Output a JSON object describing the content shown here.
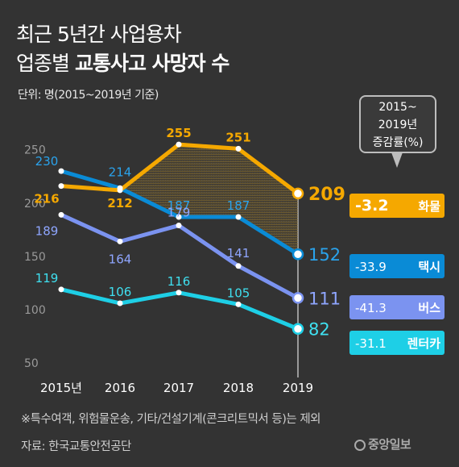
{
  "header": {
    "title_line1": "최근 5년간 사업용차",
    "title_line2_plain": "업종별 ",
    "title_line2_bold": "교통사고 사망자 수",
    "unit": "단위: 명(2015~2019년 기준)"
  },
  "callout": {
    "line1": "2015~",
    "line2": "2019년",
    "line3": "증감률(%)"
  },
  "chart_data": {
    "type": "line",
    "x": [
      "2015년",
      "2016",
      "2017",
      "2018",
      "2019"
    ],
    "ylim": [
      50,
      250
    ],
    "yticks": [
      50,
      100,
      150,
      200,
      250
    ],
    "grid": false,
    "series": [
      {
        "name": "화물",
        "values": [
          216,
          212,
          255,
          251,
          209
        ],
        "change": "-3.2",
        "color": "#f5a800"
      },
      {
        "name": "택시",
        "values": [
          230,
          214,
          187,
          187,
          152
        ],
        "change": "-33.9",
        "color": "#0a8bd6"
      },
      {
        "name": "버스",
        "values": [
          189,
          164,
          179,
          141,
          111
        ],
        "change": "-41.3",
        "color": "#7b93f0"
      },
      {
        "name": "렌터카",
        "values": [
          119,
          106,
          116,
          105,
          82
        ],
        "change": "-31.1",
        "color": "#1ecfe6"
      }
    ]
  },
  "footnote": "※특수여객, 위험물운송, 기타/건설기계(콘크리트믹서 등)는 제외",
  "source": "자료: 한국교통안전공단",
  "logo": "중앙일보"
}
